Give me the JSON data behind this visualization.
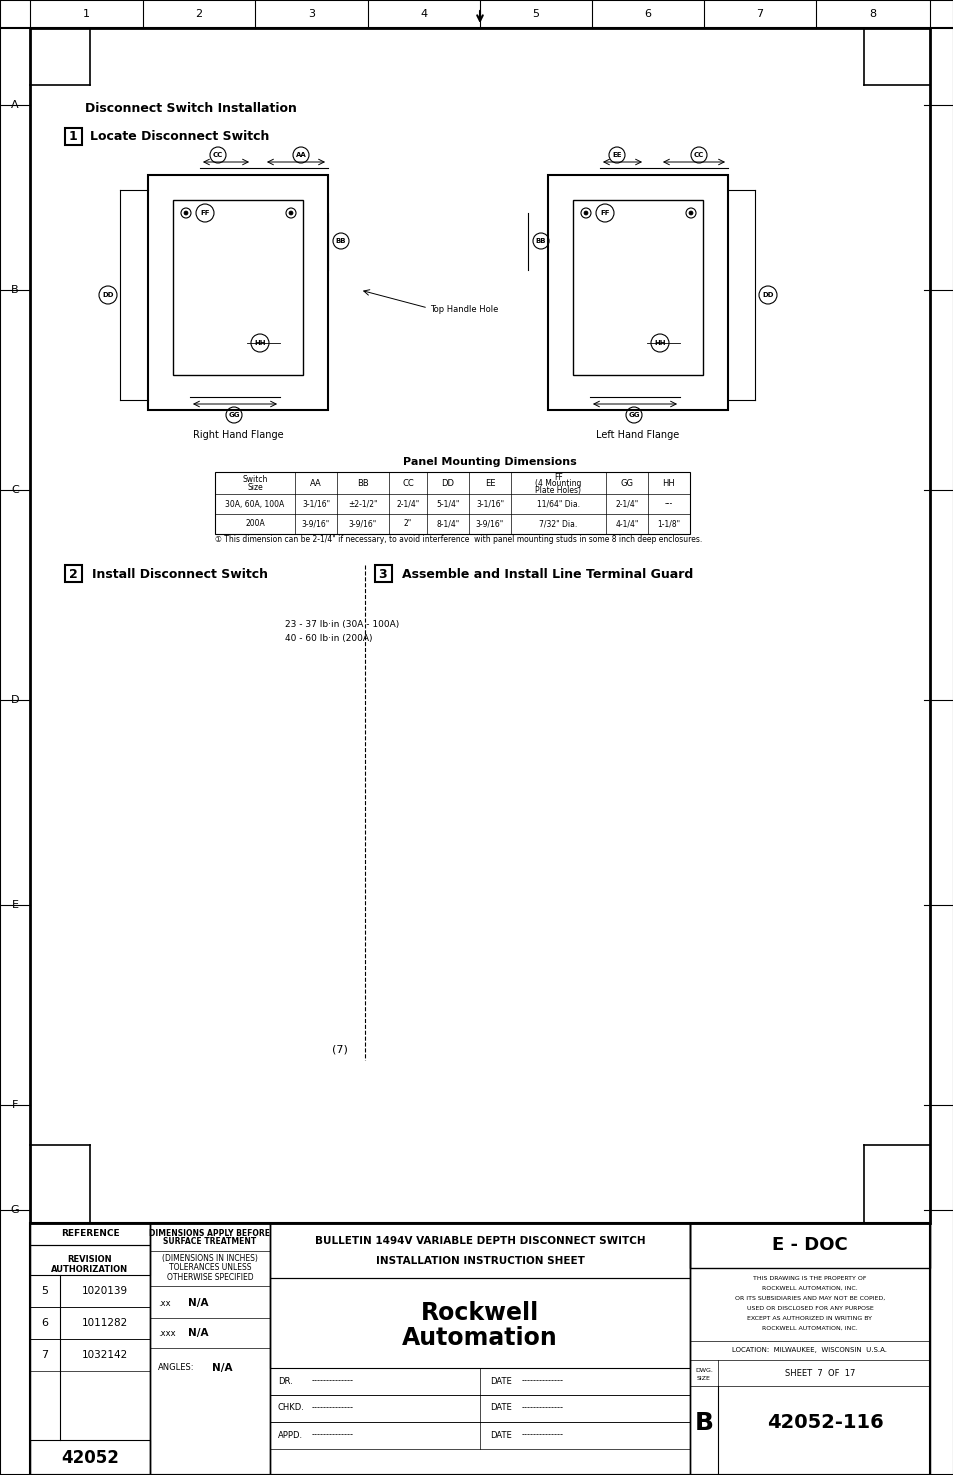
{
  "title": "Disconnect Switch Installation",
  "step1_title": "Locate Disconnect Switch",
  "step2_title": "Install Disconnect Switch",
  "step3_title": "Assemble and Install Line Terminal Guard",
  "right_hand_label": "Right Hand Flange",
  "left_hand_label": "Left Hand Flange",
  "top_handle_label": "Top Handle Hole",
  "panel_dimensions_title": "Panel Mounting Dimensions",
  "table_row1_col0": "30A, 60A, 100A",
  "table_row1": [
    "3-1/16\"",
    "±2-1/2\"",
    "2-1/4\"",
    "5-1/4\"",
    "3-1/16\"",
    "11/64\" Dia.",
    "2-1/4\"",
    "---"
  ],
  "table_row2_col0": "200A",
  "table_row2": [
    "3-9/16\"",
    "3-9/16\"",
    "2\"",
    "8-1/4\"",
    "3-9/16\"",
    "7/32\" Dia.",
    "4-1/4\"",
    "1-1/8\""
  ],
  "footnote": "① This dimension can be 2-1/4\" if necessary, to avoid interference  with panel mounting studs in some 8 inch deep enclosures.",
  "torque_note1": "23 - 37 lb·in (30A - 100A)",
  "torque_note2": "40 - 60 lb·in (200A)",
  "page_num": "(7)",
  "bulletin_title": "BULLETIN 1494V VARIABLE DEPTH DISCONNECT SWITCH",
  "installation_title": "INSTALLATION INSTRUCTION SHEET",
  "e_doc": "E - DOC",
  "property_text1": "THIS DRAWING IS THE PROPERTY OF",
  "property_text2": "ROCKWELL AUTOMATION, INC.",
  "property_text3": "OR ITS SUBSIDIARIES AND MAY NOT BE COPIED,",
  "property_text4": "USED OR DISCLOSED FOR ANY PURPOSE",
  "property_text5": "EXCEPT AS AUTHORIZED IN WRITING BY",
  "property_text6": "ROCKWELL AUTOMATION, INC.",
  "location_text": "LOCATION:  MILWAUKEE,  WISCONSIN  U.S.A.",
  "sheet_text": "SHEET  7  OF  17",
  "dwg_size": "B",
  "dwg_number": "42052-116",
  "ref_number": "42052",
  "dim_note1": "DIMENSIONS APPLY BEFORE",
  "dim_note2": "SURFACE TREATMENT",
  "dim_note3": "(DIMENSIONS IN INCHES)",
  "dim_note4": "TOLERANCES UNLESS",
  "dim_note5": "OTHERWISE SPECIFIED",
  "revision_label1": "REVISION",
  "revision_label2": "AUTHORIZATION",
  "reference_label": "REFERENCE",
  "rev5": "5",
  "rev5num": "1020139",
  "rev6": "6",
  "rev6num": "1011282",
  "rev7": "7",
  "rev7num": "1032142",
  "dashes": "--------------",
  "bg_color": "#ffffff"
}
